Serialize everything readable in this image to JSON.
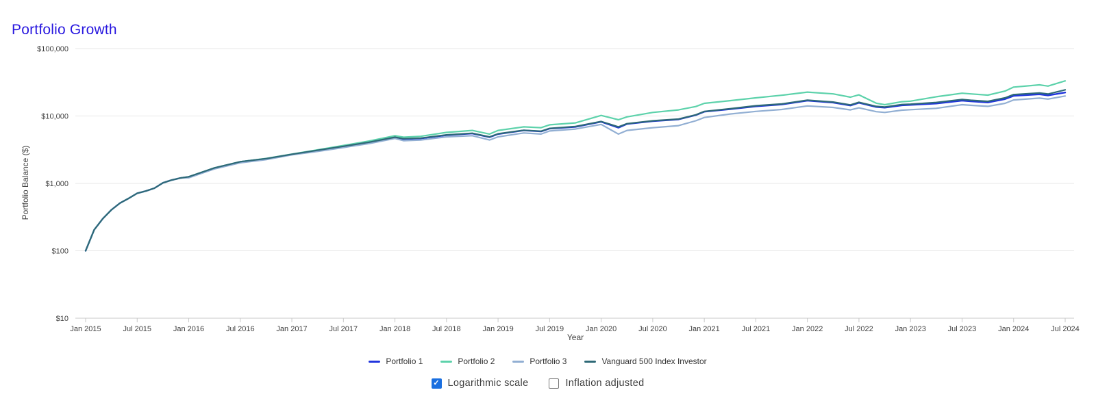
{
  "title": "Portfolio Growth",
  "colors": {
    "title_text": "#2817df",
    "grid_line": "#e7e7e7",
    "axis_line": "#c8c8c8",
    "tick_text": "#3f3f3f",
    "checkbox_checked_fill": "#1a6fe0"
  },
  "chart_data": {
    "type": "line",
    "title": "Portfolio Growth",
    "xlabel": "Year",
    "ylabel": "Portfolio Balance ($)",
    "log_scale": true,
    "grid": true,
    "legend_position": "bottom",
    "xlim": [
      2015.0,
      2024.5
    ],
    "ylim": [
      10,
      100000
    ],
    "y_ticks": [
      {
        "label": "$100,000",
        "value": 100000
      },
      {
        "label": "$10,000",
        "value": 10000
      },
      {
        "label": "$1,000",
        "value": 1000
      },
      {
        "label": "$100",
        "value": 100
      },
      {
        "label": "$10",
        "value": 10
      }
    ],
    "x_ticks": [
      {
        "label": "Jan 2015",
        "value": 2015.0
      },
      {
        "label": "Jul 2015",
        "value": 2015.5
      },
      {
        "label": "Jan 2016",
        "value": 2016.0
      },
      {
        "label": "Jul 2016",
        "value": 2016.5
      },
      {
        "label": "Jan 2017",
        "value": 2017.0
      },
      {
        "label": "Jul 2017",
        "value": 2017.5
      },
      {
        "label": "Jan 2018",
        "value": 2018.0
      },
      {
        "label": "Jul 2018",
        "value": 2018.5
      },
      {
        "label": "Jan 2019",
        "value": 2019.0
      },
      {
        "label": "Jul 2019",
        "value": 2019.5
      },
      {
        "label": "Jan 2020",
        "value": 2020.0
      },
      {
        "label": "Jul 2020",
        "value": 2020.5
      },
      {
        "label": "Jan 2021",
        "value": 2021.0
      },
      {
        "label": "Jul 2021",
        "value": 2021.5
      },
      {
        "label": "Jan 2022",
        "value": 2022.0
      },
      {
        "label": "Jul 2022",
        "value": 2022.5
      },
      {
        "label": "Jan 2023",
        "value": 2023.0
      },
      {
        "label": "Jul 2023",
        "value": 2023.5
      },
      {
        "label": "Jan 2024",
        "value": 2024.0
      },
      {
        "label": "Jul 2024",
        "value": 2024.5
      }
    ],
    "x": [
      2015.0,
      2015.083,
      2015.167,
      2015.25,
      2015.333,
      2015.417,
      2015.5,
      2015.583,
      2015.667,
      2015.75,
      2015.833,
      2015.917,
      2016.0,
      2016.25,
      2016.5,
      2016.75,
      2017.0,
      2017.25,
      2017.5,
      2017.75,
      2018.0,
      2018.083,
      2018.25,
      2018.5,
      2018.75,
      2018.917,
      2019.0,
      2019.25,
      2019.417,
      2019.5,
      2019.75,
      2020.0,
      2020.167,
      2020.25,
      2020.5,
      2020.75,
      2020.917,
      2021.0,
      2021.25,
      2021.5,
      2021.75,
      2022.0,
      2022.25,
      2022.417,
      2022.5,
      2022.667,
      2022.75,
      2022.917,
      2023.0,
      2023.25,
      2023.5,
      2023.583,
      2023.75,
      2023.917,
      2024.0,
      2024.25,
      2024.333,
      2024.5
    ],
    "series": [
      {
        "name": "Portfolio 1",
        "color": "#2135dd",
        "width": 2.4,
        "values": [
          100,
          205,
          300,
          405,
          510,
          600,
          715,
          770,
          850,
          1020,
          1120,
          1200,
          1250,
          1690,
          2090,
          2320,
          2700,
          3080,
          3520,
          4060,
          4800,
          4550,
          4650,
          5200,
          5500,
          4850,
          5400,
          6100,
          5900,
          6500,
          6900,
          8200,
          6700,
          7600,
          8400,
          8900,
          10300,
          11600,
          12600,
          13900,
          14800,
          16900,
          15800,
          14300,
          15700,
          13600,
          13300,
          14400,
          14600,
          15300,
          16900,
          16500,
          15900,
          17800,
          19900,
          21000,
          20200,
          22300
        ]
      },
      {
        "name": "Portfolio 2",
        "color": "#5dd2ab",
        "width": 2.2,
        "values": [
          100,
          205,
          300,
          405,
          510,
          600,
          715,
          770,
          850,
          1020,
          1120,
          1200,
          1255,
          1700,
          2100,
          2340,
          2720,
          3150,
          3650,
          4250,
          5100,
          4850,
          5000,
          5700,
          6100,
          5400,
          6100,
          6900,
          6700,
          7400,
          7900,
          10200,
          8800,
          9700,
          11300,
          12300,
          13800,
          15400,
          16900,
          18600,
          20300,
          22600,
          21300,
          19000,
          20600,
          15500,
          14700,
          16300,
          16600,
          19300,
          21800,
          21300,
          20400,
          23400,
          26800,
          29000,
          27800,
          33200
        ]
      },
      {
        "name": "Portfolio 3",
        "color": "#92afd3",
        "width": 2.2,
        "values": [
          100,
          205,
          300,
          405,
          510,
          600,
          715,
          770,
          850,
          1020,
          1120,
          1200,
          1210,
          1640,
          2020,
          2250,
          2650,
          2980,
          3400,
          3900,
          4650,
          4300,
          4400,
          4900,
          5100,
          4400,
          4900,
          5600,
          5400,
          6000,
          6400,
          7500,
          5400,
          6100,
          6700,
          7200,
          8500,
          9500,
          10700,
          11700,
          12500,
          14100,
          13400,
          12300,
          13200,
          11600,
          11300,
          12200,
          12400,
          13000,
          14700,
          14400,
          13900,
          15400,
          17300,
          18400,
          17800,
          19800
        ]
      },
      {
        "name": "Vanguard 500 Index Investor",
        "color": "#2e6977",
        "width": 2.2,
        "values": [
          100,
          205,
          300,
          405,
          510,
          600,
          715,
          770,
          850,
          1020,
          1120,
          1200,
          1255,
          1700,
          2100,
          2330,
          2710,
          3100,
          3550,
          4080,
          4850,
          4600,
          4700,
          5250,
          5550,
          4900,
          5450,
          6150,
          5950,
          6550,
          7000,
          8300,
          6900,
          7700,
          8500,
          9000,
          10400,
          11700,
          12800,
          14200,
          15100,
          17200,
          16100,
          14600,
          16000,
          13900,
          13600,
          14800,
          15000,
          15900,
          17600,
          17100,
          16500,
          18600,
          20800,
          22000,
          21200,
          24400
        ]
      }
    ]
  },
  "controls": {
    "log_label": "Logarithmic scale",
    "log_checked": true,
    "log_check_glyph": "✓",
    "inflation_label": "Inflation adjusted",
    "inflation_checked": false
  }
}
